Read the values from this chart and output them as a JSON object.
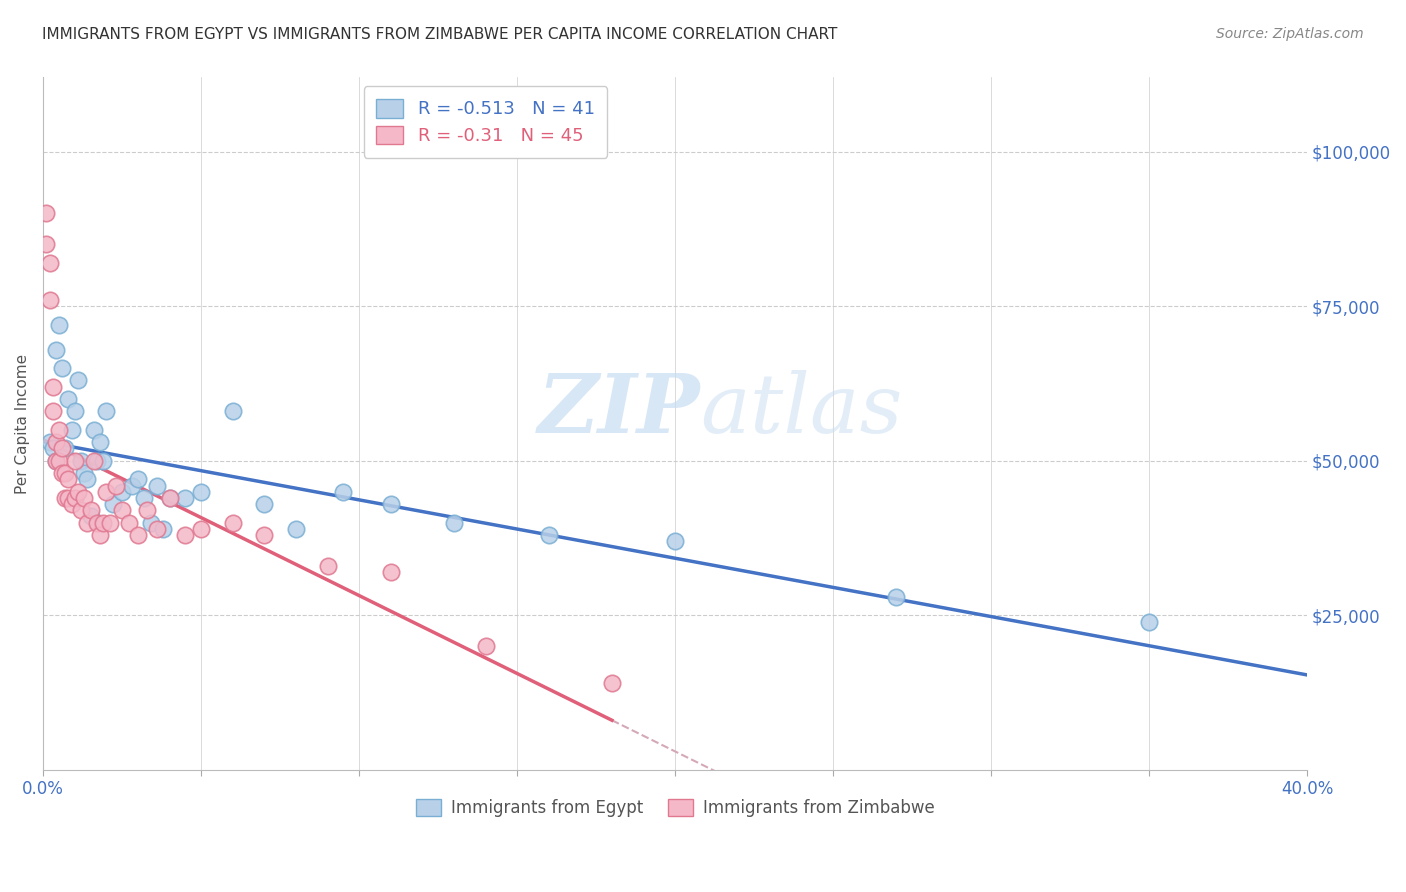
{
  "title": "IMMIGRANTS FROM EGYPT VS IMMIGRANTS FROM ZIMBABWE PER CAPITA INCOME CORRELATION CHART",
  "source": "Source: ZipAtlas.com",
  "ylabel": "Per Capita Income",
  "ytick_labels": [
    "$25,000",
    "$50,000",
    "$75,000",
    "$100,000"
  ],
  "ytick_values": [
    25000,
    50000,
    75000,
    100000
  ],
  "ylim": [
    0,
    112000
  ],
  "xlim": [
    0.0,
    0.4
  ],
  "egypt_color": "#b8d0e8",
  "egypt_edge_color": "#7aafd4",
  "egypt_line_color": "#4472c4",
  "zimbabwe_color": "#f4b8c8",
  "zimbabwe_edge_color": "#e07890",
  "zimbabwe_line_color": "#e0607a",
  "R_egypt": -0.513,
  "N_egypt": 41,
  "R_zimbabwe": -0.31,
  "N_zimbabwe": 45,
  "legend_label_egypt": "Immigrants from Egypt",
  "legend_label_zimbabwe": "Immigrants from Zimbabwe",
  "watermark_zip": "ZIP",
  "watermark_atlas": "atlas",
  "egypt_x": [
    0.002,
    0.003,
    0.004,
    0.004,
    0.005,
    0.006,
    0.007,
    0.008,
    0.009,
    0.01,
    0.011,
    0.012,
    0.013,
    0.014,
    0.015,
    0.016,
    0.017,
    0.018,
    0.019,
    0.02,
    0.022,
    0.025,
    0.028,
    0.03,
    0.032,
    0.034,
    0.036,
    0.038,
    0.04,
    0.045,
    0.05,
    0.06,
    0.07,
    0.08,
    0.095,
    0.11,
    0.13,
    0.16,
    0.2,
    0.27,
    0.35
  ],
  "egypt_y": [
    53000,
    52000,
    68000,
    50000,
    72000,
    65000,
    52000,
    60000,
    55000,
    58000,
    63000,
    50000,
    48000,
    47000,
    41000,
    55000,
    50000,
    53000,
    50000,
    58000,
    43000,
    45000,
    46000,
    47000,
    44000,
    40000,
    46000,
    39000,
    44000,
    44000,
    45000,
    58000,
    43000,
    39000,
    45000,
    43000,
    40000,
    38000,
    37000,
    28000,
    24000
  ],
  "zimbabwe_x": [
    0.001,
    0.001,
    0.002,
    0.002,
    0.003,
    0.003,
    0.004,
    0.004,
    0.005,
    0.005,
    0.006,
    0.006,
    0.007,
    0.007,
    0.008,
    0.008,
    0.009,
    0.01,
    0.01,
    0.011,
    0.012,
    0.013,
    0.014,
    0.015,
    0.016,
    0.017,
    0.018,
    0.019,
    0.02,
    0.021,
    0.023,
    0.025,
    0.027,
    0.03,
    0.033,
    0.036,
    0.04,
    0.045,
    0.05,
    0.06,
    0.07,
    0.09,
    0.11,
    0.14,
    0.18
  ],
  "zimbabwe_y": [
    90000,
    85000,
    82000,
    76000,
    62000,
    58000,
    53000,
    50000,
    55000,
    50000,
    52000,
    48000,
    48000,
    44000,
    47000,
    44000,
    43000,
    50000,
    44000,
    45000,
    42000,
    44000,
    40000,
    42000,
    50000,
    40000,
    38000,
    40000,
    45000,
    40000,
    46000,
    42000,
    40000,
    38000,
    42000,
    39000,
    44000,
    38000,
    39000,
    40000,
    38000,
    33000,
    32000,
    20000,
    14000
  ]
}
